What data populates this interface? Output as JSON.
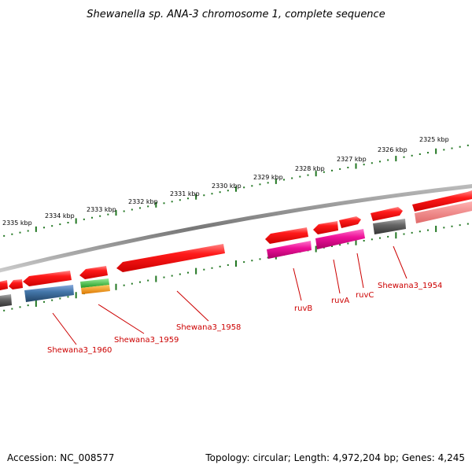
{
  "title": "Shewanella sp. ANA-3 chromosome 1, complete sequence",
  "footer": {
    "accession": "Accession: NC_008577",
    "topology": "Topology: circular; Length: 4,972,204 bp; Genes: 4,245"
  },
  "ticks": [
    "2335 kbp",
    "2334 kbp",
    "2333 kbp",
    "2332 kbp",
    "2331 kbp",
    "2330 kbp",
    "2329 kbp",
    "2328 kbp",
    "2327 kbp",
    "2326 kbp",
    "2325 kbp"
  ],
  "gene_labels": [
    "Shewana3_1960",
    "Shewana3_1959",
    "Shewana3_1958",
    "ruvB",
    "ruvA",
    "ruvC",
    "Shewana3_1954"
  ],
  "colors": {
    "gene": "#ee1111",
    "gene_light": "#ee7777",
    "cds_magenta": "#ee1199",
    "cds_blue": "#4477aa",
    "cds_gray": "#666666",
    "cds_green": "#33bb33",
    "cds_orange": "#ee8800",
    "tick": "#227722",
    "label": "#cc0000"
  }
}
